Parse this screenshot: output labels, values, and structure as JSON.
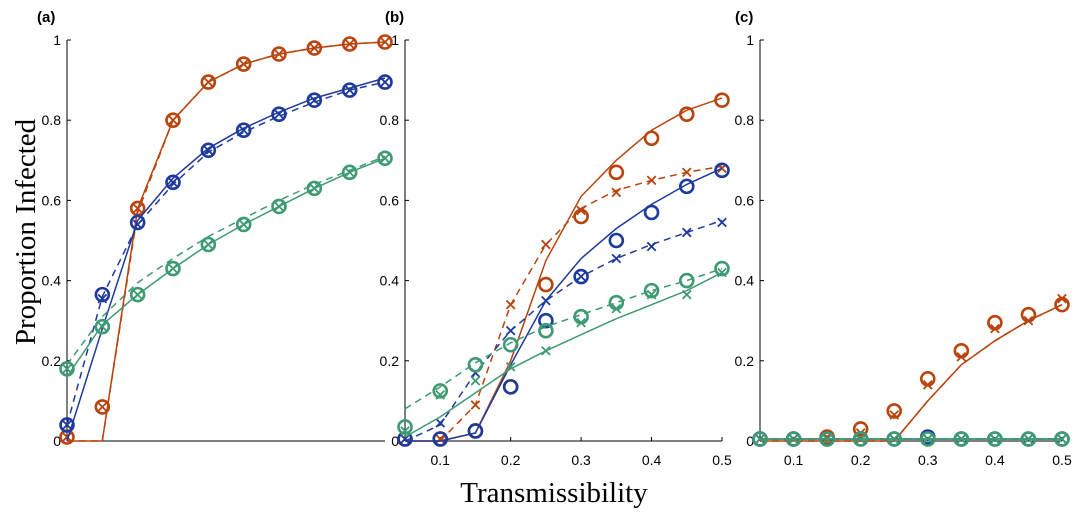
{
  "figure": {
    "xlabel": "Transmissibility",
    "ylabel": "Proportion Infected"
  },
  "colors": {
    "orange": "#B8440E",
    "blue": "#1E3A9C",
    "green": "#3E9A72"
  },
  "chart_data": [
    {
      "type": "line",
      "panel_label": "(a)",
      "xlim": [
        0.05,
        0.5
      ],
      "ylim": [
        0,
        1
      ],
      "xticks": [],
      "yticks": [
        0,
        0.2,
        0.4,
        0.6,
        0.8,
        1
      ],
      "ytick_labels": [
        "0",
        "0.2",
        "0.4",
        "0.6",
        "0.8",
        "1"
      ],
      "grid": false,
      "x": [
        0.05,
        0.1,
        0.15,
        0.2,
        0.25,
        0.3,
        0.35,
        0.4,
        0.45,
        0.5
      ],
      "series": [
        {
          "color": "orange",
          "solid": [
            [
              0.05,
              0
            ],
            [
              0.1,
              0
            ],
            [
              0.15,
              0.58
            ],
            [
              0.2,
              0.8
            ],
            [
              0.25,
              0.895
            ],
            [
              0.3,
              0.94
            ],
            [
              0.35,
              0.965
            ],
            [
              0.4,
              0.98
            ],
            [
              0.45,
              0.99
            ],
            [
              0.5,
              0.995
            ]
          ],
          "dashed": [
            [
              0.05,
              0
            ],
            [
              0.1,
              0
            ],
            [
              0.15,
              0.57
            ],
            [
              0.2,
              0.8
            ],
            [
              0.25,
              0.895
            ],
            [
              0.3,
              0.94
            ],
            [
              0.35,
              0.965
            ],
            [
              0.4,
              0.98
            ],
            [
              0.45,
              0.99
            ],
            [
              0.5,
              0.995
            ]
          ],
          "circles": [
            0.01,
            0.085,
            0.58,
            0.8,
            0.895,
            0.94,
            0.965,
            0.98,
            0.99,
            0.995
          ],
          "crosses": [
            0.01,
            0.085,
            0.58,
            0.8,
            0.895,
            0.94,
            0.965,
            0.98,
            0.99,
            0.995
          ]
        },
        {
          "color": "blue",
          "solid": [
            [
              0.05,
              0
            ],
            [
              0.1,
              0.28
            ],
            [
              0.15,
              0.55
            ],
            [
              0.2,
              0.655
            ],
            [
              0.25,
              0.73
            ],
            [
              0.3,
              0.78
            ],
            [
              0.35,
              0.82
            ],
            [
              0.4,
              0.855
            ],
            [
              0.45,
              0.88
            ],
            [
              0.5,
              0.905
            ]
          ],
          "dashed": [
            [
              0.05,
              0.04
            ],
            [
              0.1,
              0.36
            ],
            [
              0.15,
              0.54
            ],
            [
              0.2,
              0.64
            ],
            [
              0.25,
              0.72
            ],
            [
              0.3,
              0.77
            ],
            [
              0.35,
              0.81
            ],
            [
              0.4,
              0.845
            ],
            [
              0.45,
              0.875
            ],
            [
              0.5,
              0.895
            ]
          ],
          "circles": [
            0.04,
            0.365,
            0.545,
            0.645,
            0.725,
            0.775,
            0.815,
            0.85,
            0.875,
            0.895
          ],
          "crosses": [
            0.04,
            0.355,
            0.54,
            0.645,
            0.725,
            0.775,
            0.815,
            0.85,
            0.875,
            0.895
          ]
        },
        {
          "color": "green",
          "solid": [
            [
              0.05,
              0.16
            ],
            [
              0.1,
              0.29
            ],
            [
              0.15,
              0.365
            ],
            [
              0.2,
              0.43
            ],
            [
              0.25,
              0.49
            ],
            [
              0.3,
              0.54
            ],
            [
              0.35,
              0.585
            ],
            [
              0.4,
              0.63
            ],
            [
              0.45,
              0.67
            ],
            [
              0.5,
              0.705
            ]
          ],
          "dashed": [
            [
              0.05,
              0.19
            ],
            [
              0.1,
              0.31
            ],
            [
              0.15,
              0.395
            ],
            [
              0.2,
              0.455
            ],
            [
              0.25,
              0.51
            ],
            [
              0.3,
              0.555
            ],
            [
              0.35,
              0.6
            ],
            [
              0.4,
              0.64
            ],
            [
              0.45,
              0.675
            ],
            [
              0.5,
              0.71
            ]
          ],
          "circles": [
            0.18,
            0.285,
            0.365,
            0.43,
            0.49,
            0.54,
            0.585,
            0.63,
            0.67,
            0.705
          ],
          "crosses": [
            0.18,
            0.285,
            0.365,
            0.43,
            0.49,
            0.54,
            0.585,
            0.63,
            0.67,
            0.705
          ]
        }
      ]
    },
    {
      "type": "line",
      "panel_label": "(b)",
      "xlim": [
        0.05,
        0.5
      ],
      "ylim": [
        0,
        1
      ],
      "xticks": [
        0.1,
        0.2,
        0.3,
        0.4,
        0.5
      ],
      "xtick_labels": [
        "0.1",
        "0.2",
        "0.3",
        "0.4",
        "0.5"
      ],
      "yticks": [
        0,
        0.2,
        0.4,
        0.6,
        0.8,
        1
      ],
      "ytick_labels": [
        "0",
        "0.2",
        "0.4",
        "0.6",
        "0.8",
        "1"
      ],
      "grid": false,
      "x": [
        0.05,
        0.1,
        0.15,
        0.2,
        0.25,
        0.3,
        0.35,
        0.4,
        0.45,
        0.5
      ],
      "series": [
        {
          "color": "orange",
          "solid": [
            [
              0.05,
              0
            ],
            [
              0.1,
              0
            ],
            [
              0.15,
              0.02
            ],
            [
              0.2,
              0.2
            ],
            [
              0.25,
              0.45
            ],
            [
              0.3,
              0.61
            ],
            [
              0.35,
              0.7
            ],
            [
              0.4,
              0.775
            ],
            [
              0.45,
              0.825
            ],
            [
              0.5,
              0.855
            ]
          ],
          "dashed": [
            [
              0.1,
              0
            ],
            [
              0.15,
              0.09
            ],
            [
              0.2,
              0.34
            ],
            [
              0.25,
              0.49
            ],
            [
              0.3,
              0.58
            ],
            [
              0.35,
              0.625
            ],
            [
              0.4,
              0.65
            ],
            [
              0.45,
              0.67
            ],
            [
              0.5,
              0.685
            ]
          ],
          "circles": [
            0.005,
            0.005,
            0.025,
            0.135,
            0.39,
            0.56,
            0.67,
            0.755,
            0.815,
            0.85
          ],
          "crosses": [
            null,
            0.005,
            0.09,
            0.34,
            0.49,
            0.575,
            0.62,
            0.65,
            0.67,
            0.68
          ]
        },
        {
          "color": "blue",
          "solid": [
            [
              0.05,
              0
            ],
            [
              0.1,
              0
            ],
            [
              0.15,
              0.02
            ],
            [
              0.2,
              0.19
            ],
            [
              0.25,
              0.35
            ],
            [
              0.3,
              0.455
            ],
            [
              0.35,
              0.53
            ],
            [
              0.4,
              0.59
            ],
            [
              0.45,
              0.64
            ],
            [
              0.5,
              0.68
            ]
          ],
          "dashed": [
            [
              0.05,
              0
            ],
            [
              0.1,
              0.04
            ],
            [
              0.15,
              0.17
            ],
            [
              0.2,
              0.275
            ],
            [
              0.25,
              0.35
            ],
            [
              0.3,
              0.41
            ],
            [
              0.35,
              0.455
            ],
            [
              0.4,
              0.49
            ],
            [
              0.45,
              0.52
            ],
            [
              0.5,
              0.55
            ]
          ],
          "circles": [
            0.005,
            0.005,
            0.025,
            0.135,
            0.3,
            0.41,
            0.5,
            0.57,
            0.635,
            0.675
          ],
          "crosses": [
            0.005,
            0.045,
            0.17,
            0.275,
            0.35,
            0.41,
            0.455,
            0.485,
            0.52,
            0.545
          ]
        },
        {
          "color": "green",
          "solid": [
            [
              0.05,
              0.01
            ],
            [
              0.1,
              0.06
            ],
            [
              0.15,
              0.12
            ],
            [
              0.2,
              0.18
            ],
            [
              0.25,
              0.225
            ],
            [
              0.3,
              0.265
            ],
            [
              0.35,
              0.305
            ],
            [
              0.4,
              0.34
            ],
            [
              0.45,
              0.375
            ],
            [
              0.5,
              0.42
            ]
          ],
          "dashed": [
            [
              0.05,
              0.08
            ],
            [
              0.1,
              0.135
            ],
            [
              0.15,
              0.195
            ],
            [
              0.2,
              0.245
            ],
            [
              0.25,
              0.285
            ],
            [
              0.3,
              0.315
            ],
            [
              0.35,
              0.345
            ],
            [
              0.4,
              0.375
            ],
            [
              0.45,
              0.4
            ],
            [
              0.5,
              0.43
            ]
          ],
          "circles": [
            0.035,
            0.125,
            0.19,
            0.24,
            0.275,
            0.31,
            0.345,
            0.375,
            0.4,
            0.43
          ],
          "crosses": [
            0.025,
            0.115,
            0.15,
            0.185,
            0.225,
            0.295,
            0.33,
            0.365,
            0.365,
            0.42
          ]
        }
      ]
    },
    {
      "type": "line",
      "panel_label": "(c)",
      "xlim": [
        0.05,
        0.5
      ],
      "ylim": [
        0,
        1
      ],
      "xticks": [
        0.1,
        0.2,
        0.3,
        0.4,
        0.5
      ],
      "xtick_labels": [
        "0.1",
        "0.2",
        "0.3",
        "0.4",
        "0.5"
      ],
      "yticks": [
        0,
        0.2,
        0.4,
        0.6,
        0.8,
        1
      ],
      "ytick_labels": [
        "0",
        "0.2",
        "0.4",
        "0.6",
        "0.8",
        "1"
      ],
      "grid": false,
      "x": [
        0.05,
        0.1,
        0.15,
        0.2,
        0.25,
        0.3,
        0.35,
        0.4,
        0.45,
        0.5
      ],
      "series": [
        {
          "color": "orange",
          "solid": [
            [
              0.05,
              0
            ],
            [
              0.1,
              0
            ],
            [
              0.15,
              0
            ],
            [
              0.2,
              0
            ],
            [
              0.25,
              0
            ],
            [
              0.3,
              0.1
            ],
            [
              0.35,
              0.19
            ],
            [
              0.4,
              0.25
            ],
            [
              0.45,
              0.3
            ],
            [
              0.5,
              0.34
            ]
          ],
          "dashed": [
            [
              0.05,
              0
            ],
            [
              0.1,
              0
            ],
            [
              0.15,
              0
            ],
            [
              0.2,
              0
            ],
            [
              0.25,
              0
            ],
            [
              0.3,
              0.1
            ],
            [
              0.35,
              0.19
            ],
            [
              0.4,
              0.25
            ],
            [
              0.45,
              0.3
            ],
            [
              0.5,
              0.34
            ]
          ],
          "circles": [
            0.005,
            0.005,
            0.01,
            0.03,
            0.075,
            0.155,
            0.225,
            0.295,
            0.315,
            0.34
          ],
          "crosses": [
            0.005,
            0.005,
            0.01,
            0.02,
            0.065,
            0.14,
            0.21,
            0.28,
            0.3,
            0.355
          ]
        },
        {
          "color": "blue",
          "solid": [
            [
              0.05,
              0.005
            ],
            [
              0.5,
              0.005
            ]
          ],
          "dashed": [
            [
              0.05,
              0.005
            ],
            [
              0.5,
              0.005
            ]
          ],
          "circles": [
            0.005,
            0.005,
            0.005,
            0.005,
            0.005,
            0.01,
            0.005,
            0.005,
            0.005,
            0.005
          ],
          "crosses": [
            0.005,
            0.005,
            0.005,
            0.005,
            0.005,
            0.005,
            0.005,
            0.005,
            0.005,
            0.005
          ]
        },
        {
          "color": "green",
          "solid": [
            [
              0.05,
              0.005
            ],
            [
              0.5,
              0.005
            ]
          ],
          "dashed": [
            [
              0.05,
              0.005
            ],
            [
              0.5,
              0.005
            ]
          ],
          "circles": [
            0.005,
            0.005,
            0.005,
            0.005,
            0.005,
            0.005,
            0.005,
            0.005,
            0.005,
            0.005
          ],
          "crosses": [
            0.005,
            0.005,
            0.005,
            0.005,
            0.005,
            0.005,
            0.005,
            0.005,
            0.005,
            0.005
          ]
        }
      ]
    }
  ]
}
